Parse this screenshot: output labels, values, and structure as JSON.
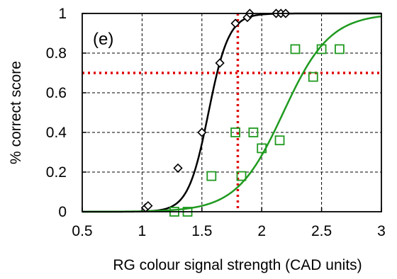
{
  "chart_data": {
    "type": "scatter",
    "panel_label": "(e)",
    "xlabel": "RG colour signal strength (CAD units)",
    "ylabel": "% correct score",
    "xlim": [
      0.5,
      3
    ],
    "ylim": [
      0,
      1
    ],
    "x_ticks": [
      0.5,
      1,
      1.5,
      2,
      2.5,
      3
    ],
    "x_tick_labels": [
      "0.5",
      "1",
      "1.5",
      "2",
      "2.5",
      "3"
    ],
    "y_ticks": [
      0,
      0.2,
      0.4,
      0.6,
      0.8,
      1
    ],
    "y_tick_labels": [
      "0",
      "0.2",
      "0.4",
      "0.6",
      "0.8",
      "1"
    ],
    "grid": true,
    "colors": {
      "series_black": "#000000",
      "series_green": "#1f9a1f",
      "threshold": "#e00000"
    },
    "threshold": {
      "y": 0.7,
      "x": 1.8
    },
    "series": [
      {
        "marker": "diamond",
        "color": "#000000",
        "points": [
          {
            "x": 1.03,
            "y": 0.02
          },
          {
            "x": 1.05,
            "y": 0.03
          },
          {
            "x": 1.3,
            "y": 0.22
          },
          {
            "x": 1.5,
            "y": 0.4
          },
          {
            "x": 1.65,
            "y": 0.75
          },
          {
            "x": 1.78,
            "y": 0.95
          },
          {
            "x": 1.88,
            "y": 0.98
          },
          {
            "x": 1.9,
            "y": 1.0
          },
          {
            "x": 2.12,
            "y": 1.0
          },
          {
            "x": 2.16,
            "y": 1.0
          },
          {
            "x": 2.2,
            "y": 1.0
          }
        ],
        "fit": {
          "mu": 1.555,
          "s": 0.085
        }
      },
      {
        "marker": "square",
        "color": "#1f9a1f",
        "points": [
          {
            "x": 1.27,
            "y": 0.0
          },
          {
            "x": 1.38,
            "y": 0.0
          },
          {
            "x": 1.58,
            "y": 0.18
          },
          {
            "x": 1.78,
            "y": 0.4
          },
          {
            "x": 1.83,
            "y": 0.18
          },
          {
            "x": 1.93,
            "y": 0.4
          },
          {
            "x": 2.0,
            "y": 0.32
          },
          {
            "x": 2.15,
            "y": 0.36
          },
          {
            "x": 2.28,
            "y": 0.82
          },
          {
            "x": 2.43,
            "y": 0.68
          },
          {
            "x": 2.5,
            "y": 0.82
          },
          {
            "x": 2.65,
            "y": 0.82
          }
        ],
        "fit": {
          "mu": 2.18,
          "s": 0.195
        }
      }
    ]
  }
}
